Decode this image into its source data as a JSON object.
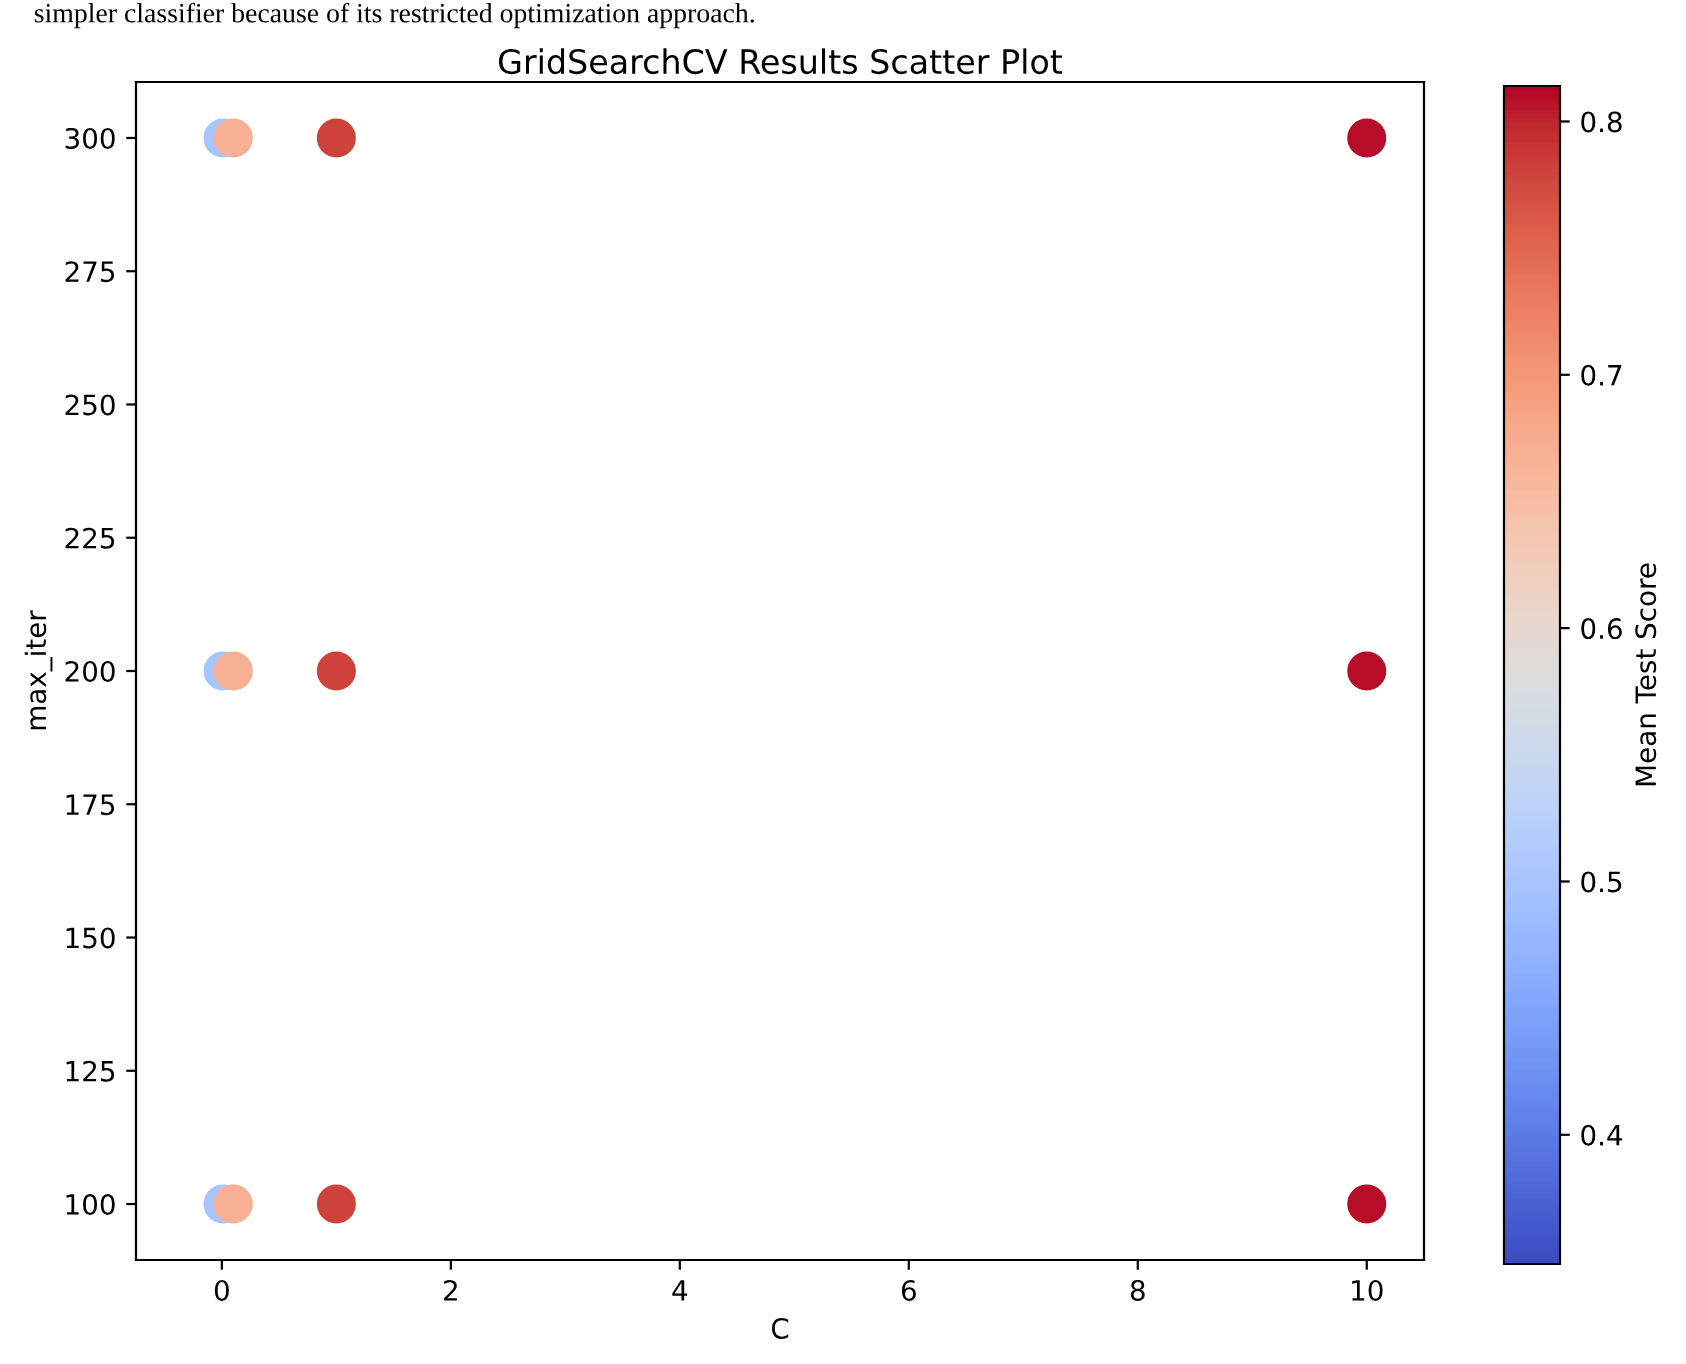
{
  "chart_data": {
    "type": "scatter",
    "title": "GridSearchCV Results Scatter Plot",
    "xlabel": "C",
    "ylabel": "max_iter",
    "clabel": "Mean Test Score",
    "annotations": [
      "simpler classifier because of its restricted optimization approach."
    ],
    "x": [
      0.01,
      0.1,
      1,
      10,
      0.01,
      0.1,
      1,
      10,
      0.01,
      0.1,
      1,
      10
    ],
    "values": [
      100,
      100,
      100,
      100,
      200,
      200,
      200,
      200,
      300,
      300,
      300,
      300
    ],
    "cvalues": [
      0.5,
      0.67,
      0.78,
      0.81,
      0.5,
      0.67,
      0.78,
      0.81,
      0.5,
      0.67,
      0.78,
      0.81
    ],
    "clim": [
      0.349,
      0.814
    ],
    "cticks": [
      0.4,
      0.5,
      0.6,
      0.7,
      0.8
    ],
    "xlim": [
      -0.75,
      10.5
    ],
    "ylim": [
      89.5,
      310.5
    ],
    "xticks": [
      0,
      2,
      4,
      6,
      8,
      10
    ],
    "yticks": [
      100,
      125,
      150,
      175,
      200,
      225,
      250,
      275,
      300
    ],
    "grid": false,
    "marker": "circle"
  }
}
